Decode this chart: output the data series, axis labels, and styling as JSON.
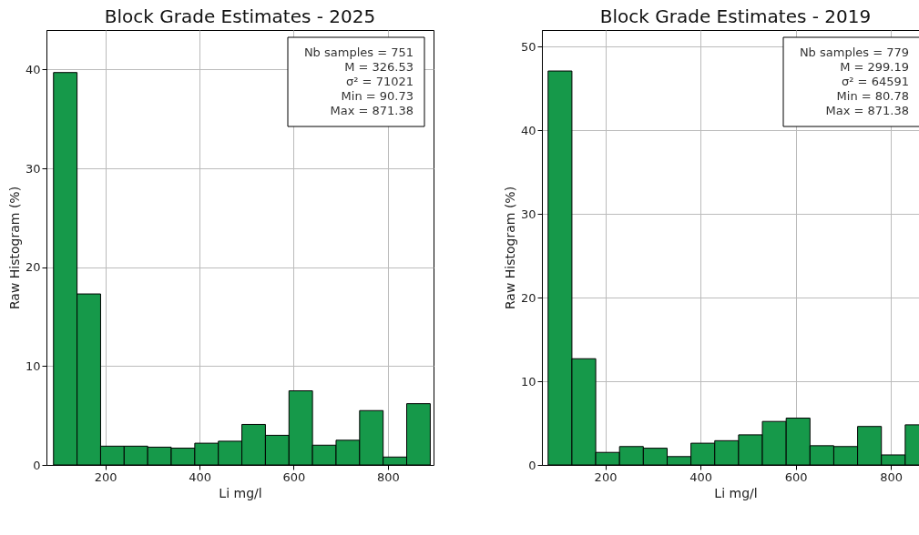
{
  "chart_data": [
    {
      "type": "histogram",
      "title": "Block Grade Estimates - 2025",
      "xlabel": "Li mg/l",
      "ylabel": "Raw Histogram (%)",
      "bins": [
        90,
        140,
        190,
        240,
        290,
        340,
        390,
        440,
        490,
        540,
        590,
        640,
        690,
        740,
        790,
        840,
        890
      ],
      "values": [
        39.7,
        17.3,
        1.9,
        1.9,
        1.8,
        1.7,
        2.2,
        2.4,
        4.1,
        3.0,
        7.5,
        2.0,
        2.5,
        5.5,
        0.8,
        6.2
      ],
      "color": "#16994a",
      "xlim": [
        75,
        897
      ],
      "ylim": [
        0,
        44
      ],
      "xticks": [
        200,
        400,
        600,
        800
      ],
      "yticks": [
        0,
        10,
        20,
        30,
        40
      ],
      "grid": true,
      "annotations": [
        "Nb samples = 751",
        "M = 326.53",
        "σ² = 71021",
        "Min = 90.73",
        "Max = 871.38"
      ]
    },
    {
      "type": "histogram",
      "title": "Block Grade Estimates - 2019",
      "xlabel": "Li mg/l",
      "ylabel": "Raw Histogram (%)",
      "bins": [
        80,
        130,
        180,
        230,
        280,
        330,
        380,
        430,
        480,
        530,
        580,
        630,
        680,
        730,
        780,
        830,
        880
      ],
      "values": [
        47.1,
        12.7,
        1.5,
        2.2,
        2.0,
        1.0,
        2.6,
        2.9,
        3.6,
        5.2,
        5.6,
        2.3,
        2.2,
        4.6,
        1.2,
        4.8
      ],
      "color": "#16994a",
      "xlim": [
        67,
        880
      ],
      "ylim": [
        0,
        52
      ],
      "xticks": [
        200,
        400,
        600,
        800
      ],
      "yticks": [
        0,
        10,
        20,
        30,
        40,
        50
      ],
      "grid": true,
      "annotations": [
        "Nb samples = 779",
        "M = 299.19",
        "σ² = 64591",
        "Min = 80.78",
        "Max = 871.38"
      ]
    }
  ]
}
